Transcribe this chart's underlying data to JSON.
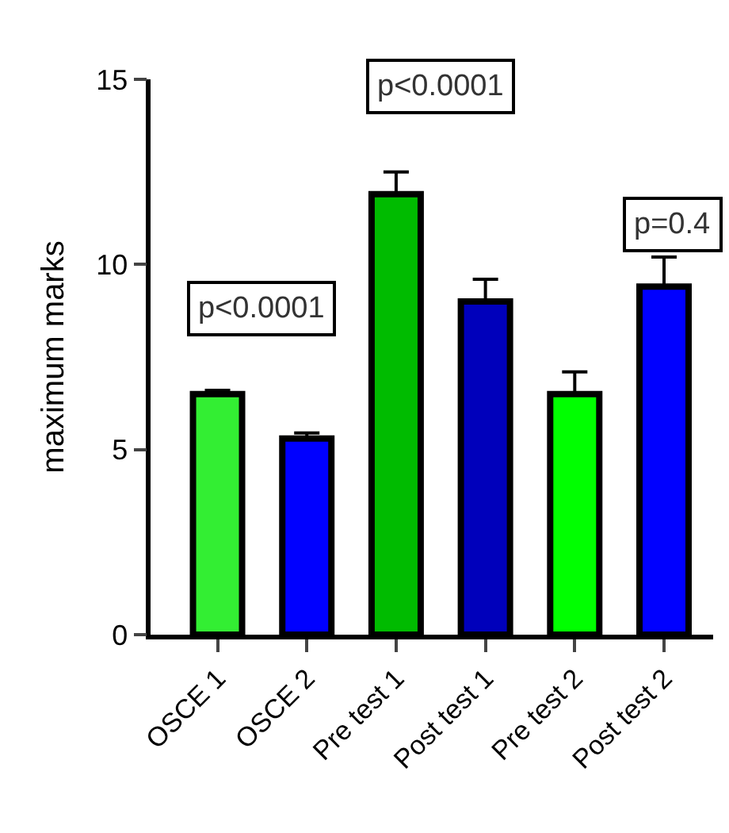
{
  "chart_data": {
    "type": "bar",
    "ylabel": "maximum marks",
    "categories": [
      "OSCE 1",
      "OSCE 2",
      "Pre test 1",
      "Post test 1",
      "Pre test 2",
      "Post test 2"
    ],
    "values": [
      6.5,
      5.3,
      11.9,
      9.0,
      6.5,
      9.4
    ],
    "colors": [
      "#33ee33",
      "#0000ff",
      "#00bb00",
      "#0000bb",
      "#00ff00",
      "#0000ff"
    ],
    "errors": [
      [
        6.5,
        6.6
      ],
      [
        5.3,
        5.45
      ],
      [
        11.9,
        12.5
      ],
      [
        9.0,
        9.6
      ],
      [
        6.5,
        7.1
      ],
      [
        9.4,
        10.2
      ]
    ],
    "ylim": [
      0,
      15
    ],
    "yticks": [
      0,
      5,
      10,
      15
    ],
    "annotations": [
      "p<0.0001",
      "p<0.0001",
      "p=0.4"
    ]
  }
}
